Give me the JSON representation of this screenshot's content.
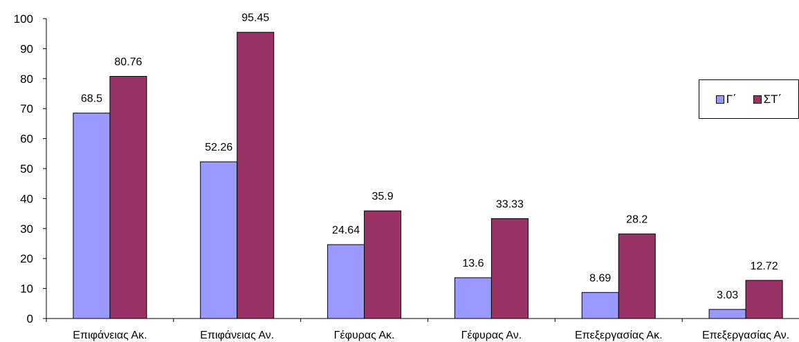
{
  "chart_data": {
    "type": "bar",
    "categories": [
      "Επιφάνειας Ακ.",
      "Επιφάνειας Αν.",
      "Γέφυρας Ακ.",
      "Γέφυρας Αν.",
      "Επεξεργασίας Ακ.",
      "Επεξεργασίας Αν."
    ],
    "series": [
      {
        "name": "Γ΄",
        "color": "#9999ff",
        "values": [
          68.5,
          52.26,
          24.64,
          13.6,
          8.69,
          3.03
        ],
        "labels": [
          "68.5",
          "52.26",
          "24.64",
          "13.6",
          "8.69",
          "3.03"
        ]
      },
      {
        "name": "ΣΤ΄",
        "color": "#993366",
        "values": [
          80.76,
          95.45,
          35.9,
          33.33,
          28.2,
          12.72
        ],
        "labels": [
          "80.76",
          "95.45",
          "35.9",
          "33.33",
          "28.2",
          "12.72"
        ]
      }
    ],
    "ylim": [
      0,
      100
    ],
    "yticks": [
      "0",
      "10",
      "20",
      "30",
      "40",
      "50",
      "60",
      "70",
      "80",
      "90",
      "100"
    ],
    "grid": false,
    "legend_position": "right"
  }
}
